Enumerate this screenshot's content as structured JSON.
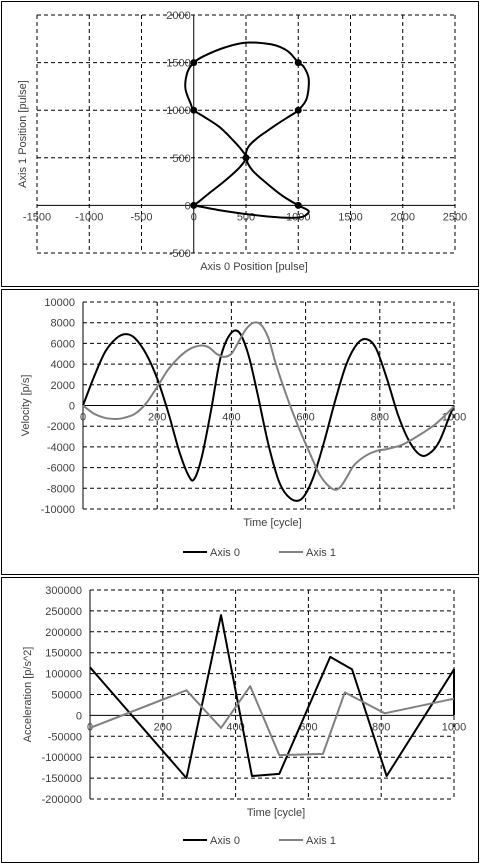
{
  "chart_data": [
    {
      "type": "line",
      "xlabel": "Axis 0 Position [pulse]",
      "ylabel": "Axis 1 Position [pulse]",
      "xlim": [
        -1500,
        2500
      ],
      "ylim": [
        -500,
        2000
      ],
      "x_ticks": [
        -1500,
        -1000,
        -500,
        0,
        500,
        1000,
        1500,
        2000,
        2500
      ],
      "y_ticks": [
        -500,
        0,
        500,
        1000,
        1500,
        2000
      ],
      "grid": true,
      "series": [
        {
          "x": [
            0,
            300,
            650,
            900,
            1040,
            1100,
            1000,
            850,
            700,
            560,
            500,
            520,
            600,
            700,
            820,
            950,
            1000,
            1080,
            1100,
            1050,
            1000,
            900,
            750,
            500,
            300,
            100,
            0,
            -60,
            -80,
            -30,
            0,
            100,
            250,
            380,
            460,
            500,
            440,
            300,
            150,
            50,
            0
          ],
          "y": [
            0,
            -60,
            -110,
            -130,
            -120,
            -60,
            0,
            100,
            230,
            370,
            500,
            610,
            700,
            780,
            870,
            960,
            1000,
            1120,
            1330,
            1460,
            1500,
            1620,
            1690,
            1710,
            1660,
            1570,
            1500,
            1400,
            1230,
            1070,
            1000,
            930,
            820,
            680,
            580,
            500,
            400,
            260,
            130,
            40,
            0
          ]
        }
      ],
      "markers": {
        "x": [
          0,
          0,
          0,
          500,
          1000,
          1000,
          1000
        ],
        "y": [
          0,
          1000,
          1500,
          500,
          1000,
          1500,
          0
        ]
      }
    },
    {
      "type": "line",
      "xlabel": "Time [cycle]",
      "ylabel": "Velocity [p/s]",
      "xlim": [
        0,
        1000
      ],
      "ylim": [
        -10000,
        10000
      ],
      "x_ticks": [
        0,
        200,
        400,
        600,
        800,
        1000
      ],
      "y_ticks": [
        -10000,
        -8000,
        -6000,
        -4000,
        -2000,
        0,
        2000,
        4000,
        6000,
        8000,
        10000
      ],
      "grid": true,
      "legend": "bottom",
      "series": [
        {
          "name": "Axis 0",
          "color": "#000000",
          "x": [
            0,
            30,
            60,
            90,
            115,
            140,
            170,
            200,
            230,
            260,
            285,
            300,
            320,
            345,
            370,
            395,
            420,
            445,
            470,
            500,
            530,
            560,
            590,
            620,
            650,
            680,
            710,
            740,
            765,
            790,
            820,
            850,
            880,
            910,
            935,
            960,
            985,
            1000
          ],
          "y": [
            0,
            2800,
            5200,
            6500,
            6900,
            6500,
            5000,
            2600,
            -700,
            -4500,
            -6800,
            -7100,
            -5000,
            -500,
            4500,
            6800,
            7100,
            5000,
            1200,
            -3800,
            -7500,
            -9000,
            -9000,
            -7000,
            -3500,
            500,
            4000,
            6000,
            6400,
            5500,
            2500,
            -1000,
            -3500,
            -4800,
            -4600,
            -3500,
            -1300,
            0
          ]
        },
        {
          "name": "Axis 1",
          "color": "#808080",
          "x": [
            0,
            30,
            60,
            90,
            110,
            140,
            170,
            200,
            230,
            260,
            290,
            320,
            340,
            360,
            380,
            400,
            420,
            440,
            460,
            480,
            500,
            520,
            550,
            580,
            610,
            640,
            670,
            690,
            710,
            730,
            760,
            790,
            820,
            860,
            900,
            950,
            1000
          ],
          "y": [
            0,
            -800,
            -1200,
            -1300,
            -1200,
            -800,
            200,
            1800,
            3500,
            4700,
            5500,
            5800,
            5600,
            5000,
            4700,
            5000,
            6200,
            7400,
            8000,
            7800,
            6500,
            4000,
            800,
            -2000,
            -4500,
            -6800,
            -8000,
            -8000,
            -7000,
            -5800,
            -4900,
            -4400,
            -4200,
            -3800,
            -3000,
            -1800,
            -100
          ]
        }
      ]
    },
    {
      "type": "line",
      "xlabel": "Time [cycle]",
      "ylabel": "Acceleration [p/s^2]",
      "xlim": [
        0,
        1000
      ],
      "ylim": [
        -200000,
        300000
      ],
      "x_ticks": [
        0,
        200,
        400,
        600,
        800,
        1000
      ],
      "y_ticks": [
        -200000,
        -150000,
        -100000,
        -50000,
        0,
        50000,
        100000,
        150000,
        200000,
        250000,
        300000
      ],
      "grid": true,
      "legend": "bottom",
      "series": [
        {
          "name": "Axis 0",
          "color": "#000000",
          "x": [
            0,
            265,
            360,
            445,
            520,
            660,
            720,
            815,
            1000,
            1000
          ],
          "y": [
            115000,
            -150000,
            240000,
            -145000,
            -140000,
            140000,
            110000,
            -145000,
            110000,
            0
          ],
          "vertical_drop_end": true
        },
        {
          "name": "Axis 1",
          "color": "#808080",
          "x": [
            0,
            265,
            360,
            440,
            520,
            640,
            700,
            810,
            1000
          ],
          "y": [
            -30000,
            60000,
            -30000,
            70000,
            -95000,
            -92000,
            55000,
            5000,
            40000
          ]
        }
      ]
    }
  ]
}
